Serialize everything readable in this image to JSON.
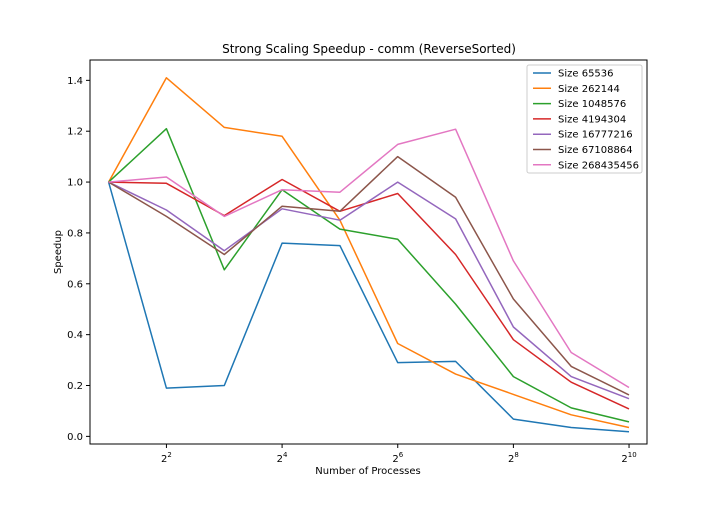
{
  "chart_data": {
    "type": "line",
    "title": "Strong Scaling Speedup - comm (ReverseSorted)",
    "xlabel": "Number of Processes",
    "ylabel": "Speedup",
    "x_scale": "log2",
    "x": [
      2,
      4,
      8,
      16,
      32,
      64,
      128,
      256,
      512,
      1024
    ],
    "xlim": [
      1.6,
      1270
    ],
    "ylim": [
      -0.03,
      1.48
    ],
    "x_ticks": [
      {
        "value": 4,
        "base": "2",
        "exp": "2"
      },
      {
        "value": 16,
        "base": "2",
        "exp": "4"
      },
      {
        "value": 64,
        "base": "2",
        "exp": "6"
      },
      {
        "value": 256,
        "base": "2",
        "exp": "8"
      },
      {
        "value": 1024,
        "base": "2",
        "exp": "10"
      }
    ],
    "y_ticks": [
      {
        "value": 0.0,
        "label": "0.0"
      },
      {
        "value": 0.2,
        "label": "0.2"
      },
      {
        "value": 0.4,
        "label": "0.4"
      },
      {
        "value": 0.6,
        "label": "0.6"
      },
      {
        "value": 0.8,
        "label": "0.8"
      },
      {
        "value": 1.0,
        "label": "1.0"
      },
      {
        "value": 1.2,
        "label": "1.2"
      },
      {
        "value": 1.4,
        "label": "1.4"
      }
    ],
    "grid": false,
    "legend_position": "top-right",
    "series": [
      {
        "name": "Size 65536",
        "color": "#1f77b4",
        "values": [
          1.0,
          0.19,
          0.2,
          0.76,
          0.75,
          0.29,
          0.295,
          0.068,
          0.035,
          0.018
        ]
      },
      {
        "name": "Size 262144",
        "color": "#ff7f0e",
        "values": [
          1.0,
          1.41,
          1.215,
          1.18,
          0.85,
          0.365,
          0.245,
          0.165,
          0.085,
          0.035
        ]
      },
      {
        "name": "Size 1048576",
        "color": "#2ca02c",
        "values": [
          1.0,
          1.21,
          0.655,
          0.97,
          0.815,
          0.775,
          0.52,
          0.235,
          0.112,
          0.057
        ]
      },
      {
        "name": "Size 4194304",
        "color": "#d62728",
        "values": [
          1.0,
          0.995,
          0.868,
          1.01,
          0.885,
          0.955,
          0.715,
          0.38,
          0.213,
          0.108
        ]
      },
      {
        "name": "Size 16777216",
        "color": "#9467bd",
        "values": [
          1.0,
          0.89,
          0.73,
          0.895,
          0.85,
          1.0,
          0.855,
          0.43,
          0.235,
          0.148
        ]
      },
      {
        "name": "Size 67108864",
        "color": "#8c564b",
        "values": [
          1.0,
          0.865,
          0.715,
          0.905,
          0.885,
          1.1,
          0.94,
          0.54,
          0.275,
          0.163
        ]
      },
      {
        "name": "Size 268435456",
        "color": "#e377c2",
        "values": [
          1.0,
          1.02,
          0.865,
          0.97,
          0.96,
          1.148,
          1.208,
          0.69,
          0.33,
          0.192
        ]
      }
    ]
  }
}
